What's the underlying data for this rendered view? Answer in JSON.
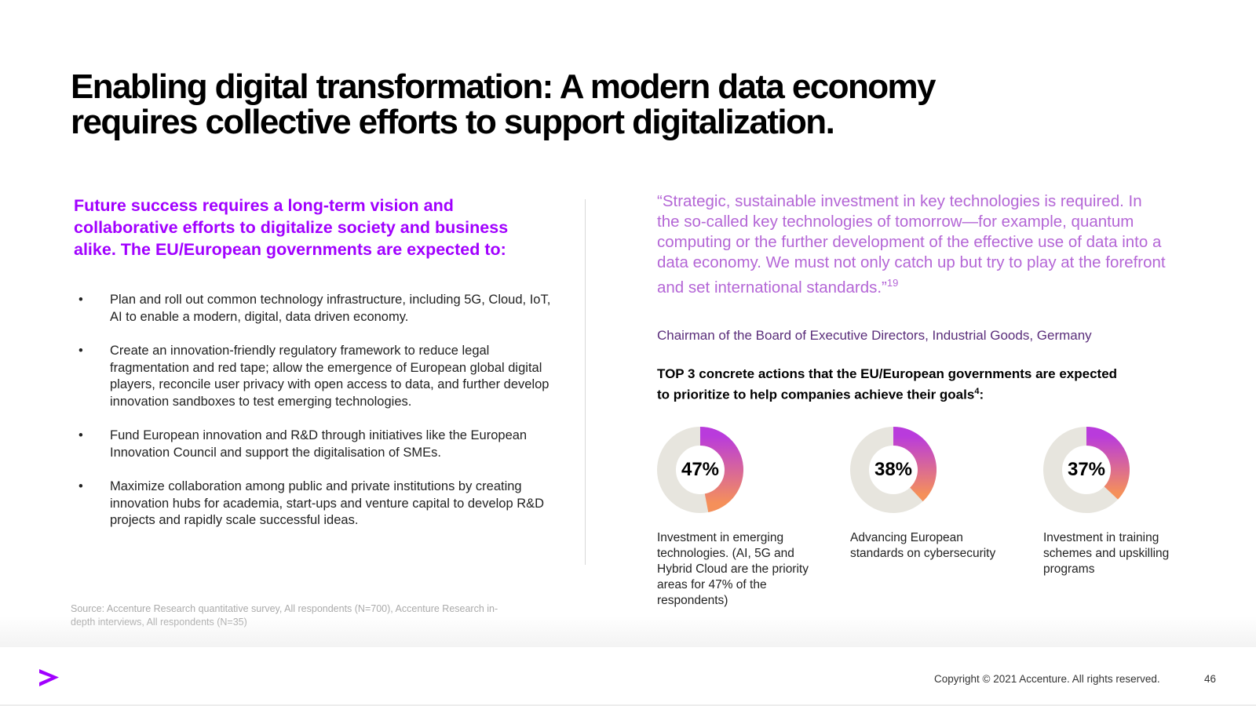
{
  "title": {
    "line1": "Enabling digital transformation: A modern data economy",
    "line2": "requires collective efforts to support digitalization."
  },
  "left": {
    "intro": "Future success requires a long-term vision and collaborative efforts to digitalize society and business alike. The EU/European governments are expected to:",
    "bullet_symbol": "•",
    "bullets": [
      "Plan and roll out common technology infrastructure, including 5G, Cloud, IoT, AI to enable a modern, digital, data driven economy.",
      "Create an innovation-friendly regulatory framework to reduce legal fragmentation and red tape; allow the emergence of European global digital players, reconcile user privacy with open access to data, and further develop innovation sandboxes to test emerging technologies.",
      "Fund European innovation and R&D through initiatives like the European Innovation Council and support the digitalisation of SMEs.",
      "Maximize collaboration among public and private institutions by creating innovation hubs for academia, start-ups and venture capital to develop R&D projects and rapidly scale successful ideas."
    ],
    "source": "Source: Accenture Research quantitative survey, All respondents (N=700), Accenture Research in-depth interviews, All respondents (N=35)"
  },
  "right": {
    "quote": "“Strategic, sustainable investment in key technologies is required. In the so-called key technologies of tomorrow—for example, quantum computing or the further development of the effective use of data into a data economy. We must not only catch up but try to play at the forefront and set international standards.”",
    "quote_ref": "19",
    "attribution": "Chairman of the Board of Executive Directors, Industrial Goods, Germany",
    "top3_heading": "TOP 3 concrete actions that the EU/European governments are expected to  prioritize to help companies achieve their goals",
    "top3_ref": "4",
    "top3_suffix": ":",
    "metrics": [
      {
        "percent_label": "47%",
        "value": 0.47,
        "label": "Investment in emerging technologies. (AI, 5G and Hybrid Cloud are the priority areas for 47% of the respondents)"
      },
      {
        "percent_label": "38%",
        "value": 0.38,
        "label": "Advancing European standards on cybersecurity"
      },
      {
        "percent_label": "37%",
        "value": 0.37,
        "label": "Investment in training schemes and upskilling programs"
      }
    ]
  },
  "colors": {
    "accent_purple": "#a100ff",
    "quote_text": "#b466d6",
    "attribution_text": "#5a2d7a",
    "donut_track": "#e7e5de",
    "donut_gradient_start": "#b93bdc",
    "donut_gradient_end": "#f5905a"
  },
  "footer": {
    "logo_icon": "accenture-chevron-icon",
    "copyright": "Copyright © 2021 Accenture. All rights reserved.",
    "page_number": "46"
  }
}
